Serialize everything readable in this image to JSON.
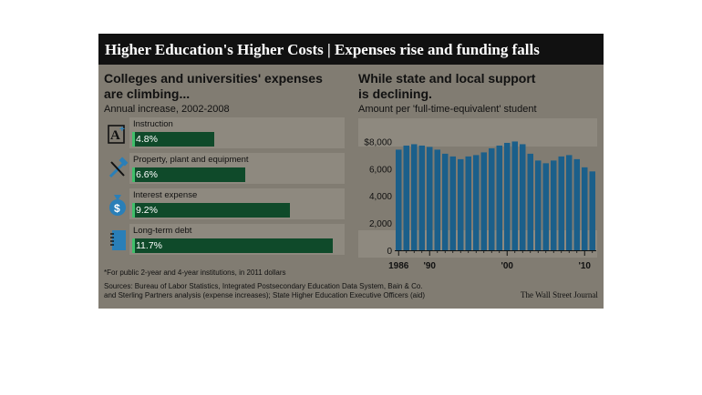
{
  "header": {
    "title": "Higher Education's Higher Costs | Expenses rise and funding falls"
  },
  "left_panel": {
    "title_line1": "Colleges and universities' expenses",
    "title_line2": "are climbing...",
    "subtitle": "Annual increase, 2002-2008"
  },
  "right_panel": {
    "title_line1": "While state and local support",
    "title_line2": "is declining.",
    "subtitle": "Amount per 'full-time-equivalent' student"
  },
  "footer": {
    "footnote": "*For public 2-year and 4-year institutions, in 2011 dollars",
    "sources_line1": "Sources: Bureau of Labor Statistics, Integrated Postsecondary Education Data System, Bain & Co.",
    "sources_line2": "and Sterling Partners analysis (expense increases); State Higher Education Executive Officers (aid)",
    "credit": "The Wall Street Journal"
  },
  "colors": {
    "panel_bg": "#817c72",
    "bar_fill": "#0f4a2a",
    "bar_accent": "#3fbf6a",
    "column_fill": "#1b5f8a",
    "icon_blue": "#2a7fb8",
    "header_bg": "#111111"
  },
  "icons": [
    "graduation-cap-icon",
    "wrench-hammer-icon",
    "money-bag-icon",
    "notebook-icon"
  ],
  "chart_data": [
    {
      "type": "bar",
      "orientation": "horizontal",
      "categories": [
        "Instruction",
        "Property, plant and equipment",
        "Interest expense",
        "Long-term debt"
      ],
      "values": [
        4.8,
        6.6,
        9.2,
        11.7
      ],
      "value_labels": [
        "4.8%",
        "6.6%",
        "9.2%",
        "11.7%"
      ],
      "unit": "%",
      "xlim": [
        0,
        12
      ]
    },
    {
      "type": "bar",
      "x": [
        1986,
        1987,
        1988,
        1989,
        1990,
        1991,
        1992,
        1993,
        1994,
        1995,
        1996,
        1997,
        1998,
        1999,
        2000,
        2001,
        2002,
        2003,
        2004,
        2005,
        2006,
        2007,
        2008,
        2009,
        2010,
        2011
      ],
      "values": [
        7400,
        7700,
        7800,
        7700,
        7600,
        7400,
        7100,
        6900,
        6700,
        6900,
        7000,
        7200,
        7500,
        7700,
        7900,
        8000,
        7800,
        7100,
        6600,
        6400,
        6600,
        6900,
        7000,
        6700,
        6100,
        5800
      ],
      "y_tick_labels": [
        "$8,000",
        "6,000",
        "4,000",
        "2,000",
        "0"
      ],
      "y_ticks": [
        8000,
        6000,
        4000,
        2000,
        0
      ],
      "x_tick_labels": [
        "1986",
        "'90",
        "'00",
        "'10"
      ],
      "x_ticks": [
        1986,
        1990,
        2000,
        2010
      ],
      "ylim": [
        0,
        8500
      ],
      "grid": false
    }
  ]
}
